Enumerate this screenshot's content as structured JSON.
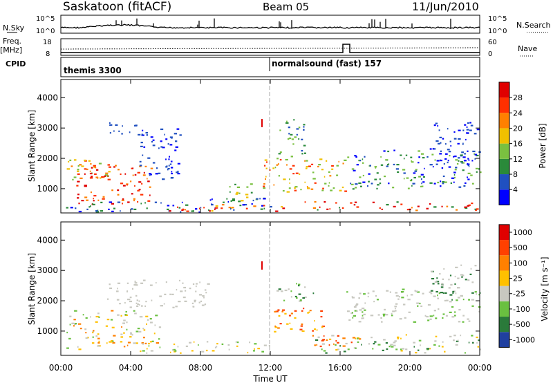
{
  "header": {
    "title": "Saskatoon (fitACF)",
    "beam": "Beam 05",
    "date": "11/Jun/2010"
  },
  "noise_panel": {
    "left_label": "N.Sky",
    "right_label": "N.Search",
    "left_ticks": [
      "10^5",
      "10^0"
    ],
    "right_ticks": [
      "10^5",
      "10^0"
    ]
  },
  "freq_panel": {
    "left_label_1": "Freq.",
    "left_label_2": "[MHz]",
    "left_ticks": [
      "18",
      "8"
    ],
    "right_label": "Nave",
    "right_ticks": [
      "60",
      "0"
    ]
  },
  "cpid_panel": {
    "label": "CPID",
    "segments": [
      "themis 3300",
      "normalsound (fast) 157"
    ]
  },
  "chart_data": [
    {
      "type": "heatmap",
      "title": "",
      "xlabel": "Time UT",
      "ylabel": "Slant Range [km]",
      "x_ticks": [
        "00:00",
        "04:00",
        "08:00",
        "12:00",
        "16:00",
        "20:00",
        "00:00"
      ],
      "y_ticks": [
        "1000",
        "2000",
        "3000",
        "4000"
      ],
      "ylim": [
        200,
        4600
      ],
      "colorbar_label": "Power [dB]",
      "colorbar_ticks": [
        "28",
        "24",
        "20",
        "16",
        "12",
        "8",
        "4"
      ],
      "colors": [
        "#0000ff",
        "#2050c0",
        "#2a8a3a",
        "#7ac040",
        "#f0c000",
        "#ff8000",
        "#ff3000",
        "#e00000"
      ]
    },
    {
      "type": "heatmap",
      "title": "",
      "xlabel": "Time UT",
      "ylabel": "Slant Range [km]",
      "x_ticks": [
        "00:00",
        "04:00",
        "08:00",
        "12:00",
        "16:00",
        "20:00",
        "00:00"
      ],
      "y_ticks": [
        "1000",
        "2000",
        "3000",
        "4000"
      ],
      "ylim": [
        200,
        4600
      ],
      "colorbar_label": "Velocity [m s⁻¹]",
      "colorbar_ticks": [
        "1000",
        "500",
        "100",
        "25",
        "-25",
        "-100",
        "-500",
        "-1000"
      ],
      "colors": [
        "#2040a0",
        "#2a7a3a",
        "#6ac040",
        "#c8c8c0",
        "#ffc000",
        "#ff8000",
        "#ff4000",
        "#e00000"
      ]
    }
  ],
  "x_axis_label": "Time UT"
}
